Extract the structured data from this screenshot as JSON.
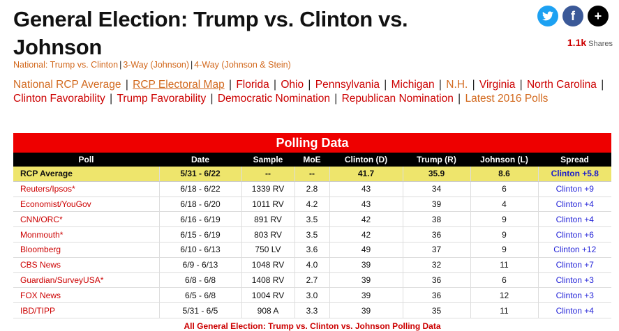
{
  "page": {
    "title": "General Election: Trump vs. Clinton vs. Johnson"
  },
  "social": {
    "twitter_glyph": "🐦",
    "facebook_glyph": "f",
    "more_glyph": "+",
    "shares_count": "1.1k",
    "shares_label": "Shares",
    "colors": {
      "twitter": "#1da1f2",
      "facebook": "#3b5998",
      "more": "#000000"
    }
  },
  "subnav": {
    "items": [
      "National: Trump vs. Clinton",
      "3-Way (Johnson)",
      "4-Way (Johnson & Stein)"
    ]
  },
  "rcp_links": {
    "items": [
      {
        "label": "National RCP Average",
        "style": "orange"
      },
      {
        "label": "RCP Electoral Map",
        "style": "underline"
      },
      {
        "label": "Florida",
        "style": "red"
      },
      {
        "label": "Ohio",
        "style": "red"
      },
      {
        "label": "Pennsylvania",
        "style": "red"
      },
      {
        "label": "Michigan",
        "style": "red"
      },
      {
        "label": "N.H.",
        "style": "orange"
      },
      {
        "label": "Virginia",
        "style": "red"
      },
      {
        "label": "North Carolina",
        "style": "red"
      },
      {
        "label": "Clinton Favorability",
        "style": "red"
      },
      {
        "label": "Trump Favorability",
        "style": "red"
      },
      {
        "label": "Democratic Nomination",
        "style": "red"
      },
      {
        "label": "Republican Nomination",
        "style": "red"
      },
      {
        "label": "Latest 2016 Polls",
        "style": "orange"
      }
    ]
  },
  "polling": {
    "heading": "Polling Data",
    "columns": [
      "Poll",
      "Date",
      "Sample",
      "MoE",
      "Clinton (D)",
      "Trump (R)",
      "Johnson (L)",
      "Spread"
    ],
    "average": {
      "poll": "RCP Average",
      "date": "5/31 - 6/22",
      "sample": "--",
      "moe": "--",
      "clinton": "41.7",
      "trump": "35.9",
      "johnson": "8.6",
      "spread": "Clinton +5.8"
    },
    "rows": [
      {
        "poll": "Reuters/Ipsos*",
        "date": "6/18 - 6/22",
        "sample": "1339 RV",
        "moe": "2.8",
        "clinton": "43",
        "trump": "34",
        "johnson": "6",
        "spread": "Clinton +9"
      },
      {
        "poll": "Economist/YouGov",
        "date": "6/18 - 6/20",
        "sample": "1011 RV",
        "moe": "4.2",
        "clinton": "43",
        "trump": "39",
        "johnson": "4",
        "spread": "Clinton +4"
      },
      {
        "poll": "CNN/ORC*",
        "date": "6/16 - 6/19",
        "sample": "891 RV",
        "moe": "3.5",
        "clinton": "42",
        "trump": "38",
        "johnson": "9",
        "spread": "Clinton +4"
      },
      {
        "poll": "Monmouth*",
        "date": "6/15 - 6/19",
        "sample": "803 RV",
        "moe": "3.5",
        "clinton": "42",
        "trump": "36",
        "johnson": "9",
        "spread": "Clinton +6"
      },
      {
        "poll": "Bloomberg",
        "date": "6/10 - 6/13",
        "sample": "750 LV",
        "moe": "3.6",
        "clinton": "49",
        "trump": "37",
        "johnson": "9",
        "spread": "Clinton +12"
      },
      {
        "poll": "CBS News",
        "date": "6/9 - 6/13",
        "sample": "1048 RV",
        "moe": "4.0",
        "clinton": "39",
        "trump": "32",
        "johnson": "11",
        "spread": "Clinton +7"
      },
      {
        "poll": "Guardian/SurveyUSA*",
        "date": "6/8 - 6/8",
        "sample": "1408 RV",
        "moe": "2.7",
        "clinton": "39",
        "trump": "36",
        "johnson": "6",
        "spread": "Clinton +3"
      },
      {
        "poll": "FOX News",
        "date": "6/5 - 6/8",
        "sample": "1004 RV",
        "moe": "3.0",
        "clinton": "39",
        "trump": "36",
        "johnson": "12",
        "spread": "Clinton +3"
      },
      {
        "poll": "IBD/TIPP",
        "date": "5/31 - 6/5",
        "sample": "908 A",
        "moe": "3.3",
        "clinton": "39",
        "trump": "35",
        "johnson": "11",
        "spread": "Clinton +4"
      }
    ],
    "footer_link": "All General Election: Trump vs. Clinton vs. Johnson Polling Data"
  }
}
